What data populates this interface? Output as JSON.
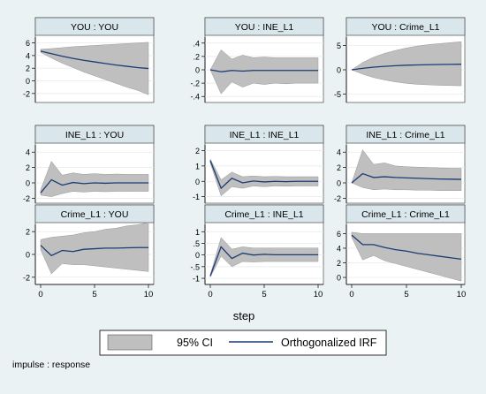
{
  "figure": {
    "xlabel": "step",
    "note": "impulse : response",
    "legend": {
      "ci_label": "95% CI",
      "irf_label": "Orthogonalized IRF"
    },
    "colors": {
      "background": "#eaf2f3",
      "panel": "#ffffff",
      "title_bar": "#d9e6eb",
      "band": "#bfbfbf",
      "line": "#1a3b73"
    }
  },
  "chart_data": [
    {
      "type": "area",
      "title": "YOU : YOU",
      "xlim": [
        0,
        10
      ],
      "ylim": [
        -3,
        6.5
      ],
      "yticks": [
        6,
        4,
        2,
        0,
        -2
      ],
      "xticks": [
        0,
        5,
        10
      ],
      "x": [
        0,
        1,
        2,
        3,
        4,
        5,
        6,
        7,
        8,
        9,
        10
      ],
      "series": [
        {
          "name": "Orthogonalized IRF",
          "values": [
            4.7,
            4.3,
            3.9,
            3.55,
            3.25,
            3.0,
            2.75,
            2.5,
            2.3,
            2.1,
            1.95
          ]
        },
        {
          "name": "95% CI lower",
          "values": [
            4.5,
            3.6,
            2.8,
            2.1,
            1.4,
            0.8,
            0.2,
            -0.4,
            -1.0,
            -1.5,
            -2.2
          ]
        },
        {
          "name": "95% CI upper",
          "values": [
            5.0,
            5.1,
            5.25,
            5.4,
            5.5,
            5.6,
            5.7,
            5.8,
            5.9,
            6.0,
            6.1
          ]
        }
      ]
    },
    {
      "type": "area",
      "title": "YOU : INE_L1",
      "xlim": [
        0,
        10
      ],
      "ylim": [
        -0.45,
        0.45
      ],
      "yticks": [
        0.4,
        0.2,
        0,
        -0.2,
        -0.4
      ],
      "ytick_labels": [
        ".4",
        ".2",
        "0",
        "-.2",
        "-.4"
      ],
      "xticks": [
        0,
        5,
        10
      ],
      "x": [
        0,
        1,
        2,
        3,
        4,
        5,
        6,
        7,
        8,
        9,
        10
      ],
      "series": [
        {
          "name": "Orthogonalized IRF",
          "values": [
            0,
            -0.03,
            -0.01,
            -0.02,
            -0.01,
            -0.01,
            -0.01,
            -0.01,
            -0.01,
            -0.01,
            -0.01
          ]
        },
        {
          "name": "95% CI lower",
          "values": [
            0,
            -0.36,
            -0.18,
            -0.26,
            -0.2,
            -0.22,
            -0.2,
            -0.21,
            -0.2,
            -0.2,
            -0.2
          ]
        },
        {
          "name": "95% CI upper",
          "values": [
            0,
            0.3,
            0.16,
            0.22,
            0.18,
            0.19,
            0.18,
            0.18,
            0.18,
            0.18,
            0.18
          ]
        }
      ]
    },
    {
      "type": "area",
      "title": "YOU : Crime_L1",
      "xlim": [
        0,
        10
      ],
      "ylim": [
        -6.2,
        6.2
      ],
      "yticks": [
        5,
        0,
        -5
      ],
      "xticks": [
        0,
        5,
        10
      ],
      "x": [
        0,
        1,
        2,
        3,
        4,
        5,
        6,
        7,
        8,
        9,
        10
      ],
      "series": [
        {
          "name": "Orthogonalized IRF",
          "values": [
            0,
            0.3,
            0.55,
            0.7,
            0.85,
            0.95,
            1.0,
            1.05,
            1.1,
            1.12,
            1.15
          ]
        },
        {
          "name": "95% CI lower",
          "values": [
            0,
            -0.9,
            -1.6,
            -2.1,
            -2.5,
            -2.8,
            -3.0,
            -3.1,
            -3.2,
            -3.25,
            -3.3
          ]
        },
        {
          "name": "95% CI upper",
          "values": [
            0,
            1.5,
            2.6,
            3.4,
            4.0,
            4.5,
            4.9,
            5.2,
            5.4,
            5.6,
            5.8
          ]
        }
      ]
    },
    {
      "type": "area",
      "title": "INE_L1 : YOU",
      "xlim": [
        0,
        10
      ],
      "ylim": [
        -2.3,
        4.6
      ],
      "yticks": [
        4,
        2,
        0,
        -2
      ],
      "xticks": [
        0,
        5,
        10
      ],
      "x": [
        0,
        1,
        2,
        3,
        4,
        5,
        6,
        7,
        8,
        9,
        10
      ],
      "series": [
        {
          "name": "Orthogonalized IRF",
          "values": [
            -1.3,
            0.4,
            -0.3,
            0.05,
            -0.1,
            0.0,
            -0.05,
            0.0,
            0.0,
            0.0,
            0.0
          ]
        },
        {
          "name": "95% CI lower",
          "values": [
            -1.6,
            -1.8,
            -1.4,
            -1.1,
            -1.2,
            -1.1,
            -1.15,
            -1.1,
            -1.1,
            -1.1,
            -1.1
          ]
        },
        {
          "name": "95% CI upper",
          "values": [
            -0.9,
            2.8,
            1.0,
            1.3,
            1.1,
            1.2,
            1.1,
            1.15,
            1.1,
            1.1,
            1.1
          ]
        }
      ]
    },
    {
      "type": "area",
      "title": "INE_L1 : INE_L1",
      "xlim": [
        0,
        10
      ],
      "ylim": [
        -1.25,
        2.2
      ],
      "yticks": [
        2,
        1,
        0,
        -1
      ],
      "xticks": [
        0,
        5,
        10
      ],
      "x": [
        0,
        1,
        2,
        3,
        4,
        5,
        6,
        7,
        8,
        9,
        10
      ],
      "series": [
        {
          "name": "Orthogonalized IRF",
          "values": [
            1.35,
            -0.45,
            0.2,
            -0.1,
            0.02,
            -0.04,
            0.0,
            -0.02,
            0.0,
            0.0,
            0.0
          ]
        },
        {
          "name": "95% CI lower",
          "values": [
            1.2,
            -0.95,
            -0.35,
            -0.45,
            -0.3,
            -0.35,
            -0.3,
            -0.32,
            -0.3,
            -0.3,
            -0.3
          ]
        },
        {
          "name": "95% CI upper",
          "values": [
            1.45,
            0.1,
            0.6,
            0.3,
            0.35,
            0.3,
            0.32,
            0.3,
            0.3,
            0.3,
            0.3
          ]
        }
      ]
    },
    {
      "type": "area",
      "title": "INE_L1 : Crime_L1",
      "xlim": [
        0,
        10
      ],
      "ylim": [
        -2.3,
        4.6
      ],
      "yticks": [
        4,
        2,
        0,
        -2
      ],
      "xticks": [
        0,
        5,
        10
      ],
      "x": [
        0,
        1,
        2,
        3,
        4,
        5,
        6,
        7,
        8,
        9,
        10
      ],
      "series": [
        {
          "name": "Orthogonalized IRF",
          "values": [
            0,
            1.2,
            0.7,
            0.8,
            0.7,
            0.65,
            0.6,
            0.55,
            0.5,
            0.48,
            0.45
          ]
        },
        {
          "name": "95% CI lower",
          "values": [
            0,
            -0.6,
            -0.9,
            -0.8,
            -0.9,
            -0.9,
            -0.95,
            -0.95,
            -1.0,
            -1.0,
            -1.0
          ]
        },
        {
          "name": "95% CI upper",
          "values": [
            0,
            4.3,
            2.4,
            2.6,
            2.2,
            2.1,
            2.05,
            2.0,
            1.95,
            1.9,
            1.9
          ]
        }
      ]
    },
    {
      "type": "area",
      "title": "Crime_L1 : YOU",
      "xlim": [
        0,
        10
      ],
      "ylim": [
        -2.4,
        2.4
      ],
      "yticks": [
        2,
        0,
        -2
      ],
      "xticks": [
        0,
        5,
        10
      ],
      "x": [
        0,
        1,
        2,
        3,
        4,
        5,
        6,
        7,
        8,
        9,
        10
      ],
      "series": [
        {
          "name": "Orthogonalized IRF",
          "values": [
            0.8,
            -0.1,
            0.35,
            0.25,
            0.45,
            0.5,
            0.55,
            0.55,
            0.58,
            0.6,
            0.6
          ]
        },
        {
          "name": "95% CI lower",
          "values": [
            0.4,
            -1.7,
            -0.8,
            -0.9,
            -0.9,
            -1.0,
            -1.1,
            -1.2,
            -1.3,
            -1.4,
            -1.5
          ]
        },
        {
          "name": "95% CI upper",
          "values": [
            1.3,
            1.5,
            1.6,
            1.7,
            1.9,
            2.0,
            2.2,
            2.3,
            2.5,
            2.6,
            2.8
          ]
        }
      ]
    },
    {
      "type": "area",
      "title": "Crime_L1 : INE_L1",
      "xlim": [
        0,
        10
      ],
      "ylim": [
        -1.15,
        1.2
      ],
      "yticks": [
        1,
        0.5,
        0,
        -0.5,
        -1
      ],
      "ytick_labels": [
        "1",
        ".5",
        "0",
        "-.5",
        "-1"
      ],
      "xticks": [
        0,
        5,
        10
      ],
      "x": [
        0,
        1,
        2,
        3,
        4,
        5,
        6,
        7,
        8,
        9,
        10
      ],
      "series": [
        {
          "name": "Orthogonalized IRF",
          "values": [
            -0.9,
            0.35,
            -0.15,
            0.08,
            0.0,
            0.03,
            0.01,
            0.01,
            0.01,
            0.01,
            0.01
          ]
        },
        {
          "name": "95% CI lower",
          "values": [
            -0.95,
            -0.05,
            -0.5,
            -0.28,
            -0.3,
            -0.28,
            -0.28,
            -0.28,
            -0.28,
            -0.28,
            -0.28
          ]
        },
        {
          "name": "95% CI upper",
          "values": [
            -0.85,
            0.75,
            0.25,
            0.35,
            0.3,
            0.3,
            0.3,
            0.3,
            0.3,
            0.3,
            0.3
          ]
        }
      ]
    },
    {
      "type": "area",
      "title": "Crime_L1 : Crime_L1",
      "xlim": [
        0,
        10
      ],
      "ylim": [
        -0.6,
        6.9
      ],
      "yticks": [
        6,
        4,
        2,
        0
      ],
      "xticks": [
        0,
        5,
        10
      ],
      "x": [
        0,
        1,
        2,
        3,
        4,
        5,
        6,
        7,
        8,
        9,
        10
      ],
      "series": [
        {
          "name": "Orthogonalized IRF",
          "values": [
            5.8,
            4.5,
            4.5,
            4.1,
            3.8,
            3.6,
            3.3,
            3.1,
            2.9,
            2.7,
            2.5
          ]
        },
        {
          "name": "95% CI lower",
          "values": [
            5.5,
            2.4,
            3.0,
            2.3,
            1.9,
            1.5,
            1.1,
            0.7,
            0.3,
            -0.1,
            -0.5
          ]
        },
        {
          "name": "95% CI upper",
          "values": [
            6.2,
            6.0,
            6.0,
            6.0,
            6.0,
            6.0,
            6.0,
            6.0,
            6.0,
            6.0,
            6.0
          ]
        }
      ]
    }
  ]
}
